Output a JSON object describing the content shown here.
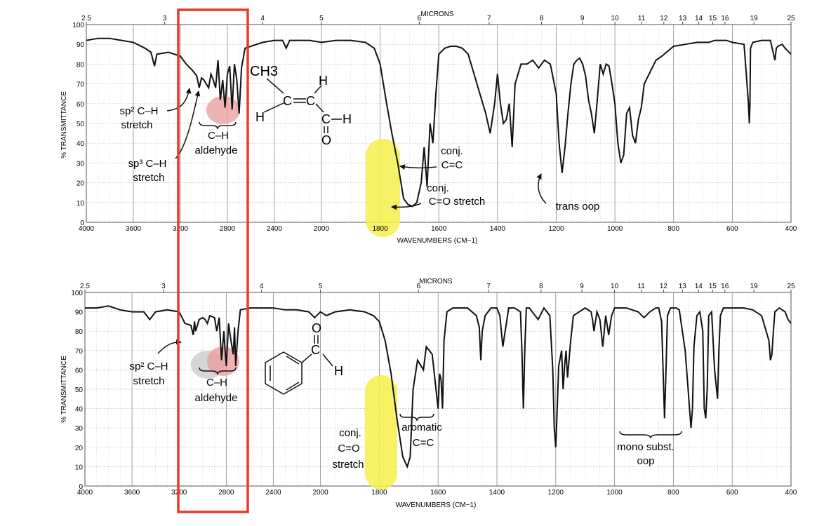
{
  "chart_data": [
    {
      "type": "line",
      "id": "top",
      "top_axis_label": "MICRONS",
      "bottom_axis_label": "WAVENUMBERS (CM−1)",
      "ylabel": "% TRANSMITTANCE",
      "ylim": [
        0,
        100
      ],
      "y_ticks": [
        "0",
        "10",
        "20",
        "30",
        "40",
        "50",
        "60",
        "70",
        "80",
        "90",
        "100"
      ],
      "x_ticks": [
        "4000",
        "3600",
        "3200",
        "2800",
        "2400",
        "2000",
        "1800",
        "1600",
        "1400",
        "1200",
        "1000",
        "800",
        "600",
        "400"
      ],
      "micron_ticks": [
        "2.5",
        "3",
        "4",
        "5",
        "6",
        "7",
        "8",
        "9",
        "10",
        "11",
        "12",
        "13",
        "14",
        "15",
        "16",
        "19",
        "25"
      ],
      "series": [
        {
          "x": [
            4000,
            3900,
            3800,
            3700,
            3600,
            3500,
            3450,
            3420,
            3400,
            3300,
            3200,
            3150,
            3100,
            3060,
            3040,
            3020,
            3000,
            2980,
            2960,
            2940,
            2920,
            2900,
            2880,
            2860,
            2840,
            2820,
            2800,
            2780,
            2760,
            2740,
            2720,
            2700,
            2680,
            2650,
            2600,
            2500,
            2400,
            2330,
            2300,
            2270,
            2200,
            2100,
            2000,
            1950,
            1900,
            1850,
            1820,
            1800,
            1780,
            1760,
            1740,
            1720,
            1705,
            1690,
            1675,
            1660,
            1650,
            1640,
            1630,
            1620,
            1610,
            1600,
            1580,
            1560,
            1540,
            1520,
            1500,
            1480,
            1460,
            1440,
            1425,
            1410,
            1400,
            1390,
            1380,
            1370,
            1360,
            1350,
            1340,
            1320,
            1300,
            1280,
            1260,
            1240,
            1220,
            1200,
            1190,
            1180,
            1170,
            1160,
            1150,
            1140,
            1130,
            1120,
            1110,
            1100,
            1090,
            1080,
            1070,
            1060,
            1050,
            1040,
            1030,
            1020,
            1010,
            1000,
            990,
            980,
            970,
            960,
            950,
            940,
            930,
            920,
            910,
            900,
            880,
            860,
            840,
            800,
            760,
            720,
            700,
            680,
            660,
            640,
            620,
            600,
            560,
            545,
            542,
            540,
            538,
            530,
            500,
            470,
            455,
            450,
            445,
            430,
            420,
            400
          ],
          "y": [
            92,
            93,
            93,
            92,
            91,
            88,
            86,
            79,
            85,
            86,
            84,
            80,
            77,
            74,
            68,
            73,
            72,
            70,
            68,
            75,
            72,
            68,
            82,
            62,
            72,
            58,
            75,
            79,
            57,
            80,
            72,
            55,
            78,
            88,
            89,
            91,
            92,
            92,
            88,
            92,
            92,
            92,
            91,
            92,
            92,
            91,
            88,
            80,
            62,
            45,
            30,
            12,
            9,
            8,
            10,
            20,
            38,
            18,
            50,
            40,
            65,
            85,
            88,
            89,
            89,
            88,
            85,
            75,
            65,
            55,
            45,
            60,
            75,
            60,
            50,
            52,
            60,
            38,
            70,
            80,
            80,
            82,
            78,
            82,
            80,
            65,
            40,
            25,
            38,
            55,
            70,
            80,
            82,
            83,
            80,
            74,
            62,
            55,
            45,
            62,
            80,
            75,
            80,
            79,
            70,
            60,
            40,
            30,
            34,
            55,
            58,
            44,
            40,
            52,
            58,
            70,
            76,
            82,
            84,
            89,
            90,
            91,
            91,
            91,
            92,
            92,
            92,
            91,
            90,
            60,
            50,
            60,
            88,
            91,
            92,
            92,
            82,
            88,
            89,
            90,
            88,
            85
          ]
        }
      ],
      "annotations": [
        {
          "id": "sp2_label",
          "lines": [
            "sp² C–H",
            "stretch"
          ]
        },
        {
          "id": "sp3_label",
          "lines": [
            "sp³ C–H",
            "stretch"
          ]
        },
        {
          "id": "ald_label",
          "lines": [
            "C–H",
            "aldehyde"
          ]
        },
        {
          "id": "conj_cc_label",
          "lines": [
            "conj.",
            "C=C"
          ]
        },
        {
          "id": "conj_co_label",
          "lines": [
            "conj.",
            "C=O stretch"
          ]
        },
        {
          "id": "trans_label",
          "lines": [
            "trans oop"
          ]
        }
      ],
      "molecule": [
        "CH3",
        "H",
        "H",
        "C",
        "C",
        "C",
        "H",
        "O"
      ]
    },
    {
      "type": "line",
      "id": "bottom",
      "top_axis_label": "MICRONS",
      "bottom_axis_label": "WAVENUMBERS (CM−1)",
      "ylabel": "% TRANSMITTANCE",
      "ylim": [
        0,
        100
      ],
      "y_ticks": [
        "0",
        "10",
        "20",
        "30",
        "40",
        "50",
        "60",
        "70",
        "80",
        "90",
        "100"
      ],
      "x_ticks": [
        "4000",
        "3600",
        "3200",
        "2800",
        "2400",
        "2000",
        "1800",
        "1600",
        "1400",
        "1200",
        "1000",
        "800",
        "600",
        "400"
      ],
      "micron_ticks": [
        "2.5",
        "3",
        "4",
        "5",
        "6",
        "7",
        "8",
        "9",
        "10",
        "11",
        "12",
        "13",
        "14",
        "15",
        "16",
        "19",
        "25"
      ],
      "series": [
        {
          "x": [
            4000,
            3900,
            3800,
            3700,
            3600,
            3500,
            3450,
            3400,
            3300,
            3200,
            3150,
            3100,
            3080,
            3070,
            3060,
            3030,
            3000,
            2980,
            2960,
            2940,
            2900,
            2880,
            2860,
            2840,
            2820,
            2810,
            2800,
            2780,
            2760,
            2740,
            2730,
            2720,
            2700,
            2680,
            2600,
            2500,
            2400,
            2300,
            2200,
            2100,
            2050,
            2000,
            1980,
            1950,
            1900,
            1850,
            1820,
            1800,
            1780,
            1760,
            1740,
            1720,
            1705,
            1695,
            1685,
            1670,
            1650,
            1640,
            1620,
            1600,
            1595,
            1590,
            1585,
            1580,
            1570,
            1560,
            1550,
            1530,
            1500,
            1470,
            1460,
            1455,
            1450,
            1440,
            1420,
            1400,
            1390,
            1380,
            1360,
            1340,
            1320,
            1315,
            1310,
            1305,
            1300,
            1290,
            1280,
            1260,
            1240,
            1220,
            1210,
            1205,
            1200,
            1195,
            1190,
            1180,
            1175,
            1170,
            1165,
            1160,
            1150,
            1140,
            1120,
            1100,
            1080,
            1075,
            1070,
            1060,
            1050,
            1040,
            1030,
            1020,
            1010,
            1000,
            980,
            960,
            940,
            920,
            900,
            880,
            860,
            850,
            840,
            835,
            830,
            825,
            820,
            810,
            800,
            790,
            780,
            760,
            750,
            745,
            740,
            735,
            730,
            720,
            710,
            700,
            695,
            690,
            685,
            680,
            670,
            660,
            650,
            645,
            640,
            630,
            620,
            600,
            560,
            530,
            500,
            475,
            470,
            465,
            460,
            455,
            440,
            420,
            410,
            400
          ],
          "y": [
            92,
            92,
            93,
            91,
            90,
            90,
            86,
            90,
            91,
            90,
            84,
            83,
            78,
            85,
            80,
            86,
            87,
            86,
            84,
            88,
            87,
            80,
            87,
            65,
            80,
            70,
            62,
            84,
            75,
            68,
            82,
            62,
            80,
            91,
            92,
            92,
            92,
            91,
            91,
            90,
            87,
            90,
            88,
            90,
            91,
            90,
            88,
            85,
            75,
            58,
            35,
            15,
            10,
            15,
            50,
            65,
            60,
            72,
            68,
            40,
            58,
            55,
            40,
            75,
            90,
            91,
            92,
            92,
            92,
            88,
            82,
            65,
            80,
            88,
            92,
            92,
            88,
            72,
            92,
            92,
            90,
            70,
            40,
            72,
            92,
            92,
            90,
            86,
            92,
            88,
            60,
            30,
            20,
            40,
            62,
            70,
            50,
            62,
            70,
            56,
            74,
            88,
            90,
            92,
            90,
            86,
            80,
            90,
            86,
            72,
            88,
            78,
            88,
            92,
            92,
            92,
            91,
            90,
            87,
            90,
            92,
            92,
            85,
            60,
            35,
            60,
            88,
            92,
            92,
            92,
            91,
            70,
            50,
            40,
            30,
            40,
            72,
            88,
            90,
            80,
            40,
            35,
            50,
            88,
            90,
            60,
            45,
            70,
            88,
            92,
            92,
            92,
            92,
            91,
            88,
            75,
            65,
            68,
            80,
            90,
            92,
            90,
            86,
            84
          ]
        }
      ],
      "annotations": [
        {
          "id": "sp2_label",
          "lines": [
            "sp² C–H",
            "stretch"
          ]
        },
        {
          "id": "ald_label",
          "lines": [
            "C–H",
            "aldehyde"
          ]
        },
        {
          "id": "conj_co_label",
          "lines": [
            "conj.",
            "C=O",
            "stretch"
          ]
        },
        {
          "id": "arom_label",
          "lines": [
            "aromatic",
            "C=C"
          ]
        },
        {
          "id": "mono_label",
          "lines": [
            "mono subst.",
            "oop"
          ]
        }
      ],
      "molecule": [
        "O",
        "C",
        "H"
      ]
    }
  ],
  "colors": {
    "spectrum": "#111111",
    "grid": "#bfbfbf",
    "highlight_box": "#e8392b",
    "yellow_highlight": "#f4ee4a",
    "red_highlight": "#e99a9a",
    "gray_highlight": "#c8c8c8"
  }
}
